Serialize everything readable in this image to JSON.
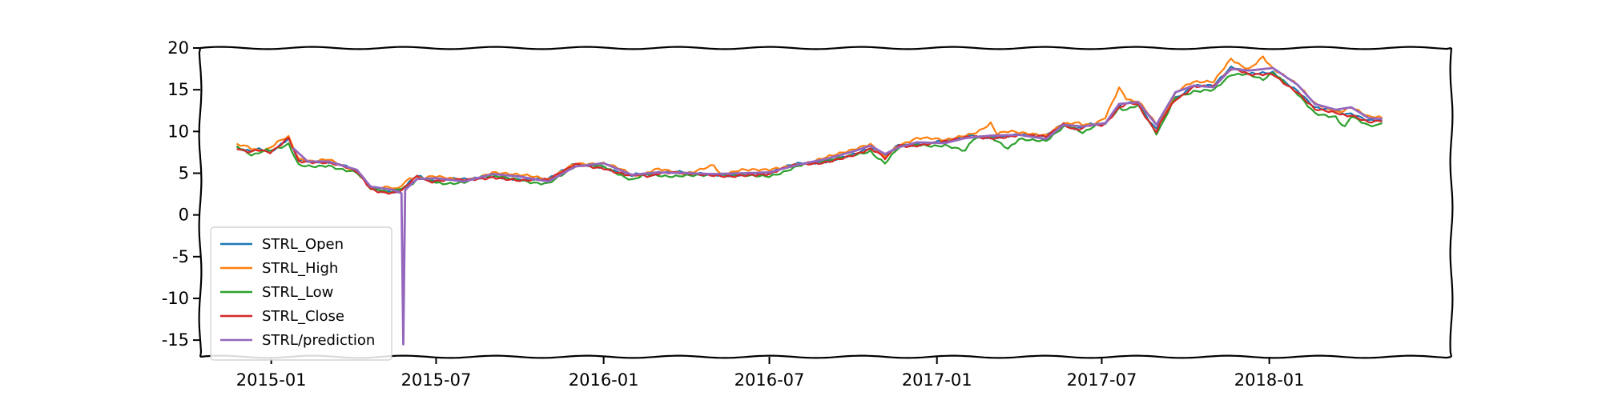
{
  "chart_data": {
    "type": "line",
    "title": "",
    "xlabel": "",
    "ylabel": "",
    "xlim": [
      "2014-10-15",
      "2018-07-20"
    ],
    "ylim": [
      -17,
      20
    ],
    "x_ticks": [
      "2015-01",
      "2015-07",
      "2016-01",
      "2016-07",
      "2017-01",
      "2017-07",
      "2018-01"
    ],
    "y_ticks": [
      -15,
      -10,
      -5,
      0,
      5,
      10,
      15,
      20
    ],
    "legend": {
      "position": "lower-left"
    },
    "grid": false,
    "series": [
      {
        "name": "STRL_Open",
        "color": "#1f77b4",
        "points": [
          [
            "2014-11-24",
            8.3
          ],
          [
            "2014-12-10",
            7.6
          ],
          [
            "2014-12-31",
            7.8
          ],
          [
            "2015-01-20",
            9.0
          ],
          [
            "2015-01-31",
            6.4
          ],
          [
            "2015-02-15",
            6.2
          ],
          [
            "2015-03-05",
            6.3
          ],
          [
            "2015-04-05",
            5.2
          ],
          [
            "2015-04-20",
            3.2
          ],
          [
            "2015-05-10",
            2.9
          ],
          [
            "2015-05-20",
            3.0
          ],
          [
            "2015-06-10",
            4.5
          ],
          [
            "2015-07-01",
            4.2
          ],
          [
            "2015-08-01",
            4.1
          ],
          [
            "2015-09-01",
            4.8
          ],
          [
            "2015-10-01",
            4.4
          ],
          [
            "2015-11-01",
            4.1
          ],
          [
            "2015-12-01",
            6.0
          ],
          [
            "2016-01-01",
            5.9
          ],
          [
            "2016-02-01",
            4.6
          ],
          [
            "2016-03-01",
            5.1
          ],
          [
            "2016-04-01",
            4.9
          ],
          [
            "2016-05-01",
            4.8
          ],
          [
            "2016-06-01",
            5.0
          ],
          [
            "2016-07-01",
            5.0
          ],
          [
            "2016-08-01",
            6.0
          ],
          [
            "2016-09-01",
            6.6
          ],
          [
            "2016-10-01",
            7.4
          ],
          [
            "2016-10-20",
            8.0
          ],
          [
            "2016-11-05",
            6.8
          ],
          [
            "2016-11-20",
            8.3
          ],
          [
            "2016-12-10",
            8.6
          ],
          [
            "2017-01-10",
            8.7
          ],
          [
            "2017-02-01",
            9.2
          ],
          [
            "2017-03-01",
            9.5
          ],
          [
            "2017-04-01",
            9.5
          ],
          [
            "2017-05-01",
            9.3
          ],
          [
            "2017-05-20",
            10.8
          ],
          [
            "2017-06-10",
            10.4
          ],
          [
            "2017-07-05",
            11.2
          ],
          [
            "2017-07-20",
            13.2
          ],
          [
            "2017-08-10",
            13.4
          ],
          [
            "2017-08-30",
            10.3
          ],
          [
            "2017-09-20",
            14.2
          ],
          [
            "2017-10-10",
            15.4
          ],
          [
            "2017-11-01",
            15.5
          ],
          [
            "2017-11-20",
            17.5
          ],
          [
            "2017-12-10",
            17.0
          ],
          [
            "2018-01-05",
            17.2
          ],
          [
            "2018-02-01",
            15.0
          ],
          [
            "2018-02-20",
            12.8
          ],
          [
            "2018-03-15",
            12.2
          ],
          [
            "2018-04-01",
            12.3
          ],
          [
            "2018-04-20",
            11.3
          ],
          [
            "2018-05-05",
            11.3
          ]
        ]
      },
      {
        "name": "STRL_High",
        "color": "#ff7f0e",
        "points": [
          [
            "2014-11-24",
            8.4
          ],
          [
            "2014-12-10",
            7.8
          ],
          [
            "2014-12-31",
            8.0
          ],
          [
            "2015-01-20",
            9.3
          ],
          [
            "2015-01-31",
            6.6
          ],
          [
            "2015-02-15",
            6.4
          ],
          [
            "2015-03-05",
            6.5
          ],
          [
            "2015-04-05",
            5.4
          ],
          [
            "2015-04-20",
            3.4
          ],
          [
            "2015-05-10",
            3.1
          ],
          [
            "2015-05-20",
            3.2
          ],
          [
            "2015-06-10",
            4.7
          ],
          [
            "2015-07-01",
            4.4
          ],
          [
            "2015-08-01",
            4.3
          ],
          [
            "2015-09-01",
            5.0
          ],
          [
            "2015-10-01",
            4.6
          ],
          [
            "2015-11-01",
            4.3
          ],
          [
            "2015-12-01",
            6.4
          ],
          [
            "2016-01-01",
            6.1
          ],
          [
            "2016-02-01",
            4.8
          ],
          [
            "2016-03-01",
            5.3
          ],
          [
            "2016-04-01",
            5.1
          ],
          [
            "2016-05-01",
            6.2
          ],
          [
            "2016-05-08",
            5.1
          ],
          [
            "2016-06-01",
            5.2
          ],
          [
            "2016-07-01",
            5.2
          ],
          [
            "2016-08-01",
            6.2
          ],
          [
            "2016-09-01",
            6.8
          ],
          [
            "2016-10-01",
            7.6
          ],
          [
            "2016-10-20",
            8.3
          ],
          [
            "2016-11-05",
            7.1
          ],
          [
            "2016-11-20",
            8.6
          ],
          [
            "2016-12-10",
            9.0
          ],
          [
            "2017-01-10",
            9.0
          ],
          [
            "2017-02-01",
            9.5
          ],
          [
            "2017-03-01",
            10.9
          ],
          [
            "2017-03-08",
            9.8
          ],
          [
            "2017-04-01",
            9.8
          ],
          [
            "2017-05-01",
            9.6
          ],
          [
            "2017-05-20",
            11.2
          ],
          [
            "2017-06-10",
            10.7
          ],
          [
            "2017-07-05",
            11.5
          ],
          [
            "2017-07-20",
            15.0
          ],
          [
            "2017-07-28",
            13.8
          ],
          [
            "2017-08-10",
            13.8
          ],
          [
            "2017-08-30",
            10.6
          ],
          [
            "2017-09-20",
            14.6
          ],
          [
            "2017-10-10",
            15.8
          ],
          [
            "2017-11-01",
            15.8
          ],
          [
            "2017-11-20",
            18.7
          ],
          [
            "2017-12-10",
            17.6
          ],
          [
            "2017-12-25",
            19.0
          ],
          [
            "2018-01-05",
            17.6
          ],
          [
            "2018-02-01",
            15.4
          ],
          [
            "2018-02-20",
            13.2
          ],
          [
            "2018-03-15",
            12.5
          ],
          [
            "2018-04-01",
            12.7
          ],
          [
            "2018-04-20",
            11.6
          ],
          [
            "2018-05-05",
            11.6
          ]
        ]
      },
      {
        "name": "STRL_Low",
        "color": "#2ca02c",
        "points": [
          [
            "2014-11-24",
            8.1
          ],
          [
            "2014-12-10",
            7.4
          ],
          [
            "2014-12-31",
            7.6
          ],
          [
            "2015-01-20",
            8.7
          ],
          [
            "2015-01-31",
            6.2
          ],
          [
            "2015-02-15",
            6.0
          ],
          [
            "2015-03-05",
            6.1
          ],
          [
            "2015-04-05",
            5.0
          ],
          [
            "2015-04-20",
            3.0
          ],
          [
            "2015-05-10",
            2.7
          ],
          [
            "2015-05-20",
            2.8
          ],
          [
            "2015-06-10",
            4.3
          ],
          [
            "2015-07-01",
            4.0
          ],
          [
            "2015-08-01",
            3.9
          ],
          [
            "2015-09-01",
            4.6
          ],
          [
            "2015-10-01",
            4.2
          ],
          [
            "2015-11-01",
            3.9
          ],
          [
            "2015-12-01",
            5.8
          ],
          [
            "2016-01-01",
            5.7
          ],
          [
            "2016-02-01",
            4.4
          ],
          [
            "2016-03-01",
            4.9
          ],
          [
            "2016-04-01",
            4.7
          ],
          [
            "2016-05-01",
            4.6
          ],
          [
            "2016-06-01",
            4.8
          ],
          [
            "2016-07-01",
            4.8
          ],
          [
            "2016-08-01",
            5.8
          ],
          [
            "2016-09-01",
            6.4
          ],
          [
            "2016-10-01",
            7.2
          ],
          [
            "2016-10-20",
            7.8
          ],
          [
            "2016-11-05",
            6.2
          ],
          [
            "2016-11-20",
            8.0
          ],
          [
            "2016-12-10",
            8.4
          ],
          [
            "2017-01-10",
            8.5
          ],
          [
            "2017-02-01",
            7.9
          ],
          [
            "2017-02-10",
            8.9
          ],
          [
            "2017-03-01",
            9.2
          ],
          [
            "2017-03-20",
            8.0
          ],
          [
            "2017-04-01",
            9.3
          ],
          [
            "2017-05-01",
            9.0
          ],
          [
            "2017-05-20",
            10.5
          ],
          [
            "2017-06-10",
            10.1
          ],
          [
            "2017-07-05",
            10.9
          ],
          [
            "2017-07-20",
            12.8
          ],
          [
            "2017-08-10",
            12.9
          ],
          [
            "2017-08-30",
            9.9
          ],
          [
            "2017-09-20",
            13.8
          ],
          [
            "2017-10-10",
            15.0
          ],
          [
            "2017-11-01",
            15.2
          ],
          [
            "2017-11-20",
            17.0
          ],
          [
            "2017-12-10",
            16.6
          ],
          [
            "2017-12-25",
            16.0
          ],
          [
            "2018-01-05",
            16.8
          ],
          [
            "2018-02-01",
            14.6
          ],
          [
            "2018-02-20",
            12.4
          ],
          [
            "2018-03-15",
            11.8
          ],
          [
            "2018-03-25",
            10.7
          ],
          [
            "2018-04-01",
            11.9
          ],
          [
            "2018-04-20",
            10.9
          ],
          [
            "2018-05-05",
            11.0
          ]
        ]
      },
      {
        "name": "STRL_Close",
        "color": "#d62728",
        "points": [
          [
            "2014-11-24",
            8.2
          ],
          [
            "2014-12-10",
            7.5
          ],
          [
            "2014-12-31",
            7.7
          ],
          [
            "2015-01-20",
            9.1
          ],
          [
            "2015-01-31",
            6.3
          ],
          [
            "2015-02-15",
            6.1
          ],
          [
            "2015-03-05",
            6.2
          ],
          [
            "2015-04-05",
            5.1
          ],
          [
            "2015-04-20",
            3.1
          ],
          [
            "2015-05-10",
            2.8
          ],
          [
            "2015-05-20",
            2.9
          ],
          [
            "2015-06-10",
            4.4
          ],
          [
            "2015-07-01",
            4.1
          ],
          [
            "2015-08-01",
            4.0
          ],
          [
            "2015-09-01",
            4.7
          ],
          [
            "2015-10-01",
            4.3
          ],
          [
            "2015-11-01",
            4.0
          ],
          [
            "2015-12-01",
            5.9
          ],
          [
            "2016-01-01",
            5.8
          ],
          [
            "2016-02-01",
            4.5
          ],
          [
            "2016-03-01",
            5.0
          ],
          [
            "2016-04-01",
            4.8
          ],
          [
            "2016-05-01",
            4.7
          ],
          [
            "2016-06-01",
            4.9
          ],
          [
            "2016-07-01",
            4.9
          ],
          [
            "2016-08-01",
            5.9
          ],
          [
            "2016-09-01",
            6.5
          ],
          [
            "2016-10-01",
            7.3
          ],
          [
            "2016-10-20",
            7.9
          ],
          [
            "2016-11-05",
            6.6
          ],
          [
            "2016-11-20",
            8.2
          ],
          [
            "2016-12-10",
            8.5
          ],
          [
            "2017-01-10",
            8.6
          ],
          [
            "2017-02-01",
            9.1
          ],
          [
            "2017-03-01",
            9.4
          ],
          [
            "2017-04-01",
            9.4
          ],
          [
            "2017-05-01",
            9.2
          ],
          [
            "2017-05-20",
            10.7
          ],
          [
            "2017-06-10",
            10.3
          ],
          [
            "2017-07-05",
            11.1
          ],
          [
            "2017-07-20",
            13.0
          ],
          [
            "2017-08-10",
            13.3
          ],
          [
            "2017-08-30",
            10.0
          ],
          [
            "2017-09-20",
            14.0
          ],
          [
            "2017-10-10",
            15.3
          ],
          [
            "2017-11-01",
            15.4
          ],
          [
            "2017-11-20",
            17.3
          ],
          [
            "2017-12-10",
            16.9
          ],
          [
            "2018-01-05",
            17.0
          ],
          [
            "2018-02-01",
            14.8
          ],
          [
            "2018-02-20",
            12.6
          ],
          [
            "2018-03-15",
            12.0
          ],
          [
            "2018-04-01",
            12.1
          ],
          [
            "2018-04-20",
            11.1
          ],
          [
            "2018-05-05",
            11.2
          ]
        ]
      },
      {
        "name": "STRL/prediction",
        "color": "#9467bd",
        "points": [
          [
            "2015-01-25",
            8.0
          ],
          [
            "2015-02-10",
            6.4
          ],
          [
            "2015-03-05",
            6.4
          ],
          [
            "2015-04-05",
            5.4
          ],
          [
            "2015-04-20",
            3.4
          ],
          [
            "2015-05-15",
            3.0
          ],
          [
            "2015-05-24",
            2.6
          ],
          [
            "2015-05-26",
            -15.5
          ],
          [
            "2015-05-28",
            3.0
          ],
          [
            "2015-06-10",
            4.3
          ],
          [
            "2015-07-01",
            4.4
          ],
          [
            "2015-08-01",
            4.0
          ],
          [
            "2015-09-01",
            4.9
          ],
          [
            "2015-10-01",
            4.6
          ],
          [
            "2015-11-01",
            4.0
          ],
          [
            "2015-12-01",
            5.8
          ],
          [
            "2016-01-01",
            6.2
          ],
          [
            "2016-02-01",
            4.8
          ],
          [
            "2016-03-01",
            5.1
          ],
          [
            "2016-04-01",
            5.0
          ],
          [
            "2016-05-01",
            4.9
          ],
          [
            "2016-06-01",
            5.0
          ],
          [
            "2016-07-01",
            5.1
          ],
          [
            "2016-08-01",
            6.0
          ],
          [
            "2016-09-01",
            6.7
          ],
          [
            "2016-10-01",
            7.6
          ],
          [
            "2016-10-20",
            8.3
          ],
          [
            "2016-11-05",
            7.3
          ],
          [
            "2016-11-20",
            8.1
          ],
          [
            "2016-12-10",
            8.7
          ],
          [
            "2017-01-10",
            8.6
          ],
          [
            "2017-02-01",
            9.2
          ],
          [
            "2017-03-01",
            9.5
          ],
          [
            "2017-04-01",
            9.6
          ],
          [
            "2017-05-01",
            9.1
          ],
          [
            "2017-05-20",
            10.8
          ],
          [
            "2017-06-10",
            10.6
          ],
          [
            "2017-07-05",
            11.0
          ],
          [
            "2017-07-20",
            13.3
          ],
          [
            "2017-08-10",
            13.5
          ],
          [
            "2017-08-30",
            10.8
          ],
          [
            "2017-09-20",
            14.7
          ],
          [
            "2017-10-10",
            15.5
          ],
          [
            "2017-11-01",
            15.3
          ],
          [
            "2017-11-20",
            17.5
          ],
          [
            "2017-12-10",
            17.3
          ],
          [
            "2018-01-05",
            17.6
          ],
          [
            "2018-02-01",
            15.6
          ],
          [
            "2018-02-20",
            13.3
          ],
          [
            "2018-03-15",
            12.6
          ],
          [
            "2018-04-01",
            12.9
          ],
          [
            "2018-04-20",
            11.6
          ],
          [
            "2018-05-05",
            11.5
          ]
        ]
      }
    ]
  }
}
